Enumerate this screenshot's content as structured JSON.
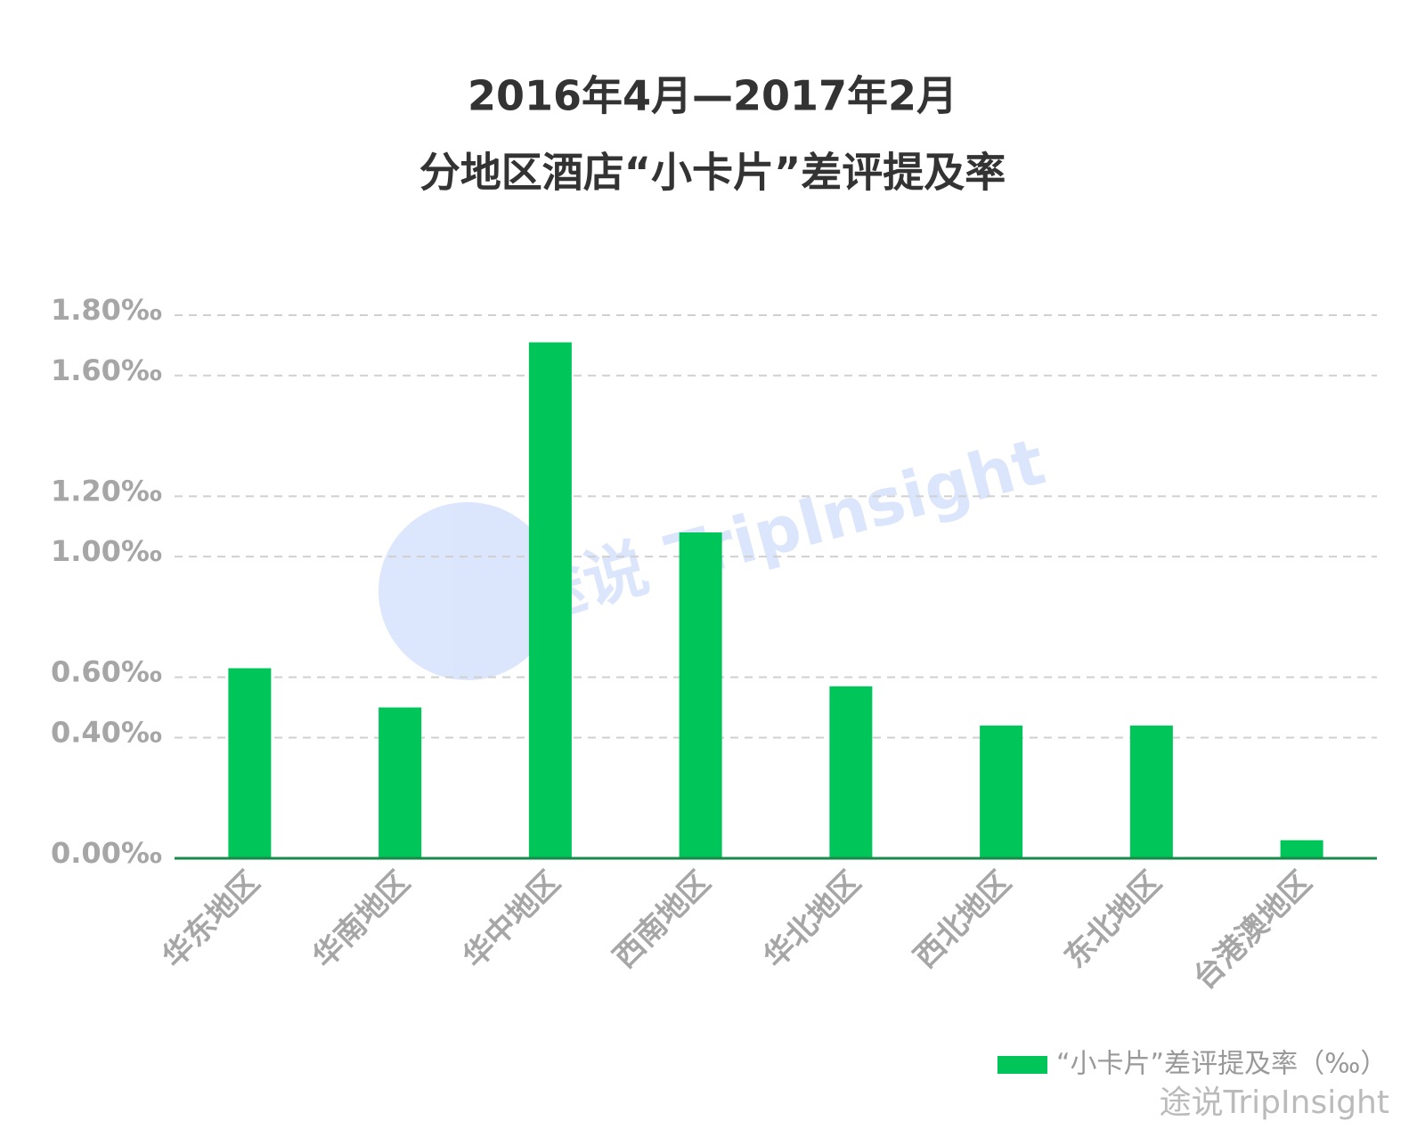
{
  "chart_data": {
    "type": "bar",
    "title": "2016年4月—2017年2月",
    "subtitle": "分地区酒店“小卡片”差评提及率",
    "categories": [
      "华东地区",
      "华南地区",
      "华中地区",
      "西南地区",
      "华北地区",
      "西北地区",
      "东北地区",
      "台港澳地区"
    ],
    "series": [
      {
        "name": "“小卡片”差评提及率（‰）",
        "color": "#00c65a",
        "values": [
          0.63,
          0.5,
          1.71,
          1.08,
          0.57,
          0.44,
          0.44,
          0.06
        ]
      }
    ],
    "ylim": [
      0,
      1.8
    ],
    "yticks": [
      {
        "value": 0,
        "label": "0.00‰"
      },
      {
        "value": 0.4,
        "label": "0.40‰"
      },
      {
        "value": 0.6,
        "label": "0.60‰"
      },
      {
        "value": 1.0,
        "label": "1.00‰"
      },
      {
        "value": 1.2,
        "label": "1.20‰"
      },
      {
        "value": 1.6,
        "label": "1.60‰"
      },
      {
        "value": 1.8,
        "label": "1.80‰"
      }
    ],
    "grid": true,
    "legend": "bottom-right",
    "watermark": "途说 TripInsight",
    "footer": "途说TripInsight"
  }
}
